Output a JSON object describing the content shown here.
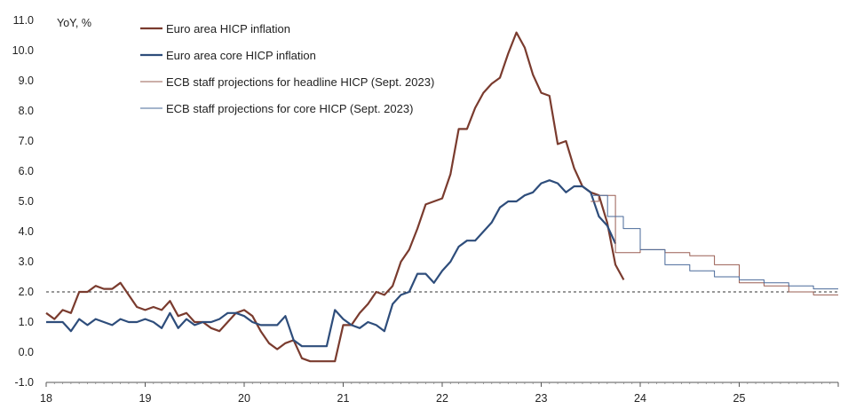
{
  "chart_data": {
    "type": "line",
    "ylabel": "YoY, %",
    "xlim": [
      2018,
      2026
    ],
    "ylim": [
      -1.0,
      11.0
    ],
    "y_ticks": [
      "-1.0",
      "0.0",
      "1.0",
      "2.0",
      "3.0",
      "4.0",
      "5.0",
      "6.0",
      "7.0",
      "8.0",
      "9.0",
      "10.0",
      "11.0"
    ],
    "x_ticks": [
      {
        "year": 2018,
        "label": "18"
      },
      {
        "year": 2019,
        "label": "19"
      },
      {
        "year": 2020,
        "label": "20"
      },
      {
        "year": 2021,
        "label": "21"
      },
      {
        "year": 2022,
        "label": "22"
      },
      {
        "year": 2023,
        "label": "23"
      },
      {
        "year": 2024,
        "label": "24"
      },
      {
        "year": 2025,
        "label": "25"
      }
    ],
    "reference_line": {
      "y": 2.0,
      "style": "dashed"
    },
    "grid": false,
    "legend_position": "top-left",
    "series": [
      {
        "name": "Euro area HICP inflation",
        "color": "#7a3b2e",
        "style": "thick",
        "start_year": 2018.0,
        "step": 0.08333,
        "values": [
          1.3,
          1.1,
          1.4,
          1.3,
          2.0,
          2.0,
          2.2,
          2.1,
          2.1,
          2.3,
          1.9,
          1.5,
          1.4,
          1.5,
          1.4,
          1.7,
          1.2,
          1.3,
          1.0,
          1.0,
          0.8,
          0.7,
          1.0,
          1.3,
          1.4,
          1.2,
          0.7,
          0.3,
          0.1,
          0.3,
          0.4,
          -0.2,
          -0.3,
          -0.3,
          -0.3,
          -0.3,
          0.9,
          0.9,
          1.3,
          1.6,
          2.0,
          1.9,
          2.2,
          3.0,
          3.4,
          4.1,
          4.9,
          5.0,
          5.1,
          5.9,
          7.4,
          7.4,
          8.1,
          8.6,
          8.9,
          9.1,
          9.9,
          10.6,
          10.1,
          9.2,
          8.6,
          8.5,
          6.9,
          7.0,
          6.1,
          5.5,
          5.3,
          5.2,
          4.3,
          2.9,
          2.4
        ]
      },
      {
        "name": "Euro area core HICP inflation",
        "color": "#2e4d7b",
        "style": "thick",
        "start_year": 2018.0,
        "step": 0.08333,
        "values": [
          1.0,
          1.0,
          1.0,
          0.7,
          1.1,
          0.9,
          1.1,
          1.0,
          0.9,
          1.1,
          1.0,
          1.0,
          1.1,
          1.0,
          0.8,
          1.3,
          0.8,
          1.1,
          0.9,
          1.0,
          1.0,
          1.1,
          1.3,
          1.3,
          1.2,
          1.0,
          0.9,
          0.9,
          0.9,
          1.2,
          0.4,
          0.2,
          0.2,
          0.2,
          0.2,
          1.4,
          1.1,
          0.9,
          0.8,
          1.0,
          0.9,
          0.7,
          1.6,
          1.9,
          2.0,
          2.6,
          2.6,
          2.3,
          2.7,
          3.0,
          3.5,
          3.7,
          3.7,
          4.0,
          4.3,
          4.8,
          5.0,
          5.0,
          5.2,
          5.3,
          5.6,
          5.7,
          5.6,
          5.3,
          5.5,
          5.5,
          5.3,
          4.5,
          4.2,
          3.6
        ]
      },
      {
        "name": "ECB staff projections for headline HICP (Sept. 2023)",
        "color": "#9a5f53",
        "style": "thin-step",
        "points": [
          [
            2023.5,
            5.0
          ],
          [
            2023.58,
            5.0
          ],
          [
            2023.58,
            5.2
          ],
          [
            2023.75,
            5.2
          ],
          [
            2023.75,
            3.3
          ],
          [
            2024.0,
            3.3
          ],
          [
            2024.0,
            3.4
          ],
          [
            2024.25,
            3.4
          ],
          [
            2024.25,
            3.3
          ],
          [
            2024.5,
            3.3
          ],
          [
            2024.5,
            3.2
          ],
          [
            2024.75,
            3.2
          ],
          [
            2024.75,
            2.9
          ],
          [
            2025.0,
            2.9
          ],
          [
            2025.0,
            2.3
          ],
          [
            2025.25,
            2.3
          ],
          [
            2025.25,
            2.2
          ],
          [
            2025.5,
            2.2
          ],
          [
            2025.5,
            2.0
          ],
          [
            2025.75,
            2.0
          ],
          [
            2025.75,
            1.9
          ],
          [
            2026.0,
            1.9
          ]
        ]
      },
      {
        "name": "ECB staff projections for core HICP (Sept. 2023)",
        "color": "#4a6a9a",
        "style": "thin-step",
        "points": [
          [
            2023.5,
            5.2
          ],
          [
            2023.67,
            5.2
          ],
          [
            2023.67,
            4.5
          ],
          [
            2023.83,
            4.5
          ],
          [
            2023.83,
            4.1
          ],
          [
            2024.0,
            4.1
          ],
          [
            2024.0,
            3.4
          ],
          [
            2024.25,
            3.4
          ],
          [
            2024.25,
            2.9
          ],
          [
            2024.5,
            2.9
          ],
          [
            2024.5,
            2.7
          ],
          [
            2024.75,
            2.7
          ],
          [
            2024.75,
            2.5
          ],
          [
            2025.0,
            2.5
          ],
          [
            2025.0,
            2.4
          ],
          [
            2025.25,
            2.4
          ],
          [
            2025.25,
            2.3
          ],
          [
            2025.5,
            2.3
          ],
          [
            2025.5,
            2.2
          ],
          [
            2025.75,
            2.2
          ],
          [
            2025.75,
            2.1
          ],
          [
            2026.0,
            2.1
          ]
        ]
      }
    ]
  }
}
